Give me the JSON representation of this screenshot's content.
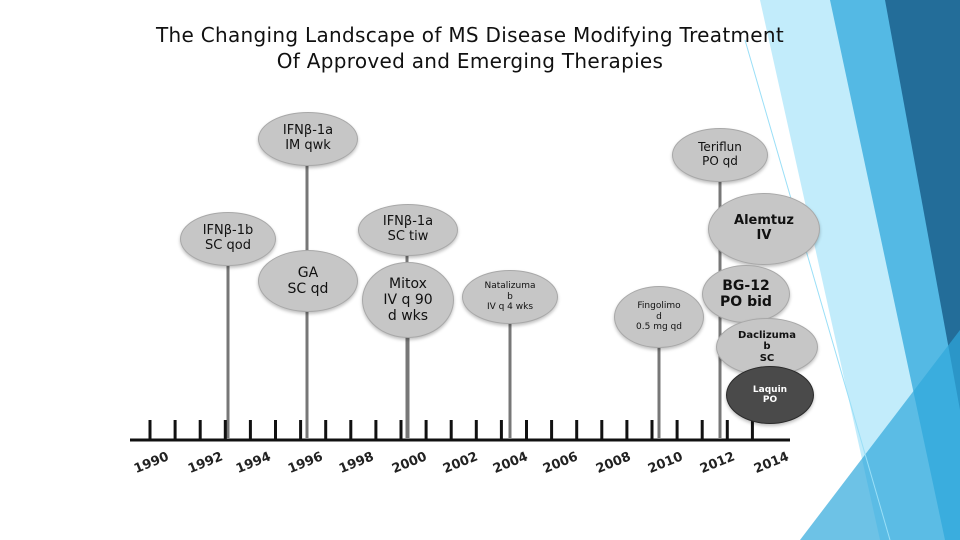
{
  "title": {
    "line1": "The Changing Landscape of MS Disease Modifying Treatment",
    "line2": "Of  Approved and Emerging Therapies"
  },
  "years": [
    "1990",
    "1992",
    "1994",
    "1996",
    "1998",
    "2000",
    "2002",
    "2004",
    "2006",
    "2008",
    "2010",
    "2012",
    "2014"
  ],
  "therapies": [
    {
      "lines": [
        "IFNβ-1a",
        "IM qwk"
      ]
    },
    {
      "lines": [
        "Teriflun",
        "PO qd"
      ]
    },
    {
      "lines": [
        "IFNβ-1a",
        "SC tiw"
      ]
    },
    {
      "lines": [
        "Alemtuz",
        "IV"
      ]
    },
    {
      "lines": [
        "IFNβ-1b",
        "SC qod"
      ]
    },
    {
      "lines": [
        "GA",
        "SC qd"
      ]
    },
    {
      "lines": [
        "Mitox",
        "IV q 90",
        "d wks"
      ]
    },
    {
      "lines": [
        "Natalizuma",
        "b",
        "IV q 4 wks"
      ]
    },
    {
      "lines": [
        "BG-12",
        "PO bid"
      ]
    },
    {
      "lines": [
        "Fingolimo",
        "d",
        "0.5 mg qd"
      ]
    },
    {
      "lines": [
        "Daclizuma",
        "b",
        "SC"
      ]
    },
    {
      "lines": [
        "Laquin",
        "PO"
      ]
    }
  ],
  "colors": {
    "bubble_fill": "#c6c6c6",
    "bubble_dark": "#4a4a4a",
    "stem": "#777777",
    "axis": "#111111",
    "accent_light": "#7fd3f2",
    "accent_mid": "#2fa8dc",
    "accent_dark": "#1b5f8c"
  }
}
